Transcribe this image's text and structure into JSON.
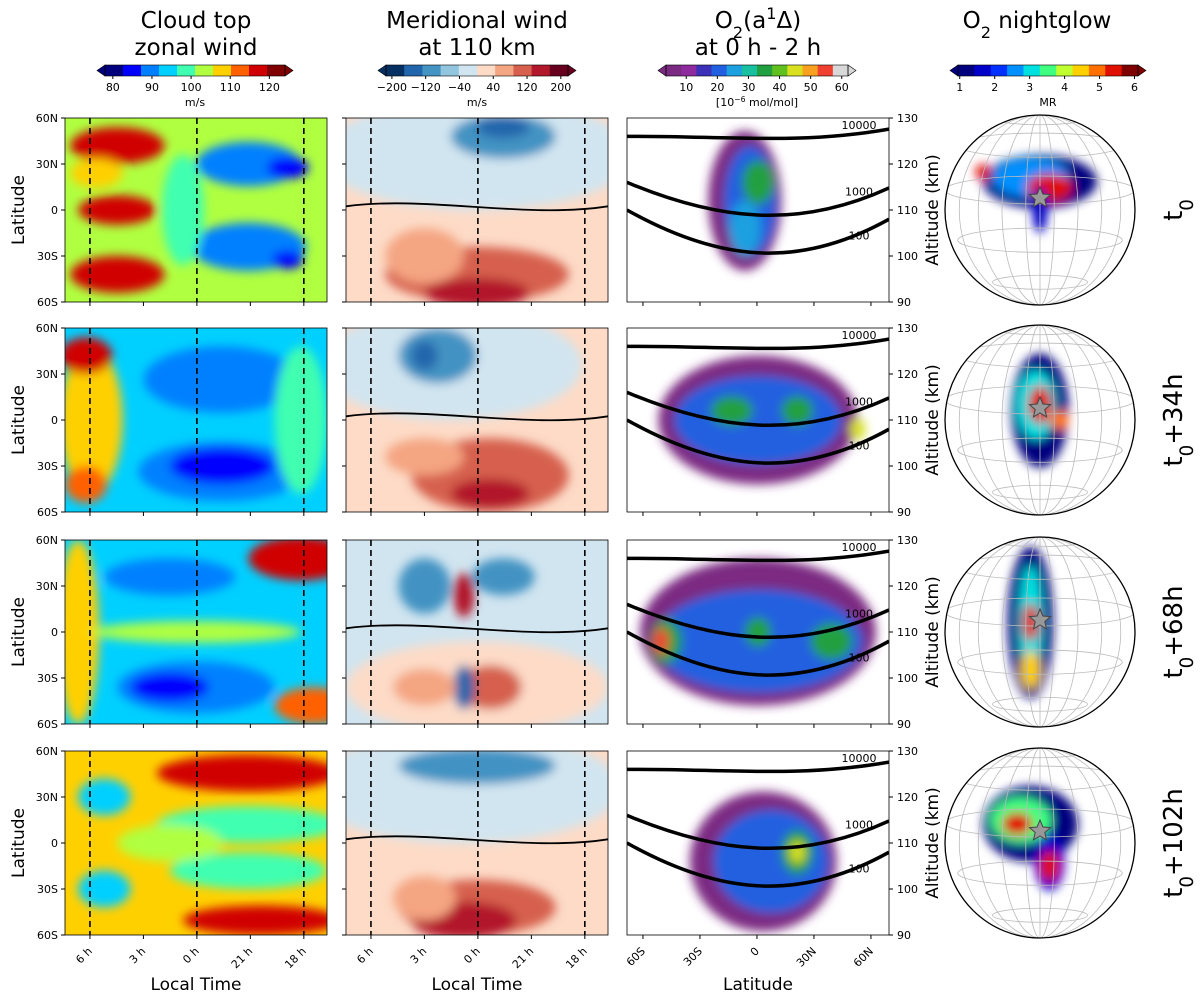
{
  "columns": [
    {
      "title": [
        [
          {
            "t": "Cloud top"
          }
        ],
        [
          {
            "t": "zonal wind"
          }
        ]
      ],
      "colorbar": {
        "lim": [
          78,
          124
        ],
        "ticks": [
          80,
          90,
          100,
          110,
          120
        ],
        "unit": [
          {
            "t": "m/s"
          }
        ],
        "colors": [
          "#00007f",
          "#0000ff",
          "#0080ff",
          "#00d0ff",
          "#40ffb0",
          "#b0ff40",
          "#ffd000",
          "#ff6000",
          "#d00000",
          "#7f0000"
        ]
      }
    },
    {
      "title": [
        [
          {
            "t": "Meridional wind"
          }
        ],
        [
          {
            "t": "at 110 km"
          }
        ]
      ],
      "colorbar": {
        "lim": [
          -214,
          217
        ],
        "ticks": [
          {
            "value": -200,
            "label": "−200"
          },
          {
            "value": -120,
            "label": "−120"
          },
          {
            "value": -40,
            "label": "−40"
          },
          40,
          120,
          200
        ],
        "unit": [
          {
            "t": "m/s"
          }
        ],
        "colors": [
          "#053061",
          "#2166ac",
          "#4393c3",
          "#92c5de",
          "#d1e5f0",
          "#fddbc7",
          "#f4a582",
          "#d6604d",
          "#b2182b",
          "#67001f"
        ]
      }
    },
    {
      "title": [
        [
          {
            "t": "O"
          },
          {
            "t": "2",
            "s": "sub"
          },
          {
            "t": "(a"
          },
          {
            "t": "1",
            "s": "sup"
          },
          {
            "t": "Δ)"
          }
        ],
        [
          {
            "t": "at 0 h - 2 h"
          }
        ]
      ],
      "colorbar": {
        "lim": [
          3.5,
          62
        ],
        "ticks": [
          10,
          20,
          30,
          40,
          50,
          60
        ],
        "unit": [
          {
            "t": "[10"
          },
          {
            "t": "−6",
            "s": "sup"
          },
          {
            "t": " mol/mol]"
          }
        ],
        "colors": [
          "#7b2a82",
          "#8e2a9e",
          "#3b30b8",
          "#2060e0",
          "#1ca0e0",
          "#18c0a0",
          "#20a040",
          "#60c020",
          "#d8e020",
          "#f8a020",
          "#f04030",
          "#d8d8d8"
        ]
      }
    },
    {
      "title": [
        [
          {
            "t": "O"
          },
          {
            "t": "2",
            "s": "sub"
          },
          {
            "t": " nightglow"
          }
        ]
      ],
      "colorbar": {
        "lim": [
          0.95,
          6.1
        ],
        "ticks": [
          1,
          2,
          3,
          4,
          5,
          6
        ],
        "unit": [
          {
            "t": "MR"
          }
        ],
        "colors": [
          "#00007f",
          "#0000c8",
          "#0030ff",
          "#0090ff",
          "#00e0e0",
          "#40ff80",
          "#c0ff30",
          "#ffd000",
          "#ff7000",
          "#e01000",
          "#7f0000"
        ]
      }
    }
  ],
  "rows": [
    {
      "label": [
        {
          "t": "t"
        },
        {
          "t": "0",
          "s": "sub"
        }
      ]
    },
    {
      "label": [
        {
          "t": "t"
        },
        {
          "t": "0",
          "s": "sub"
        },
        {
          "t": "+34h"
        }
      ]
    },
    {
      "label": [
        {
          "t": "t"
        },
        {
          "t": "0",
          "s": "sub"
        },
        {
          "t": "+68h"
        }
      ]
    },
    {
      "label": [
        {
          "t": "t"
        },
        {
          "t": "0",
          "s": "sub"
        },
        {
          "t": "+102h"
        }
      ]
    }
  ],
  "time_axis": {
    "xlabel": "Local Time",
    "ylabel": "Latitude",
    "xlim": [
      7.4,
      -7.3
    ],
    "xticks": [
      {
        "value": 6,
        "label": "6 h"
      },
      {
        "value": 3,
        "label": "3 h"
      },
      {
        "value": 0,
        "label": "0 h"
      },
      {
        "value": -3,
        "label": "21 h"
      },
      {
        "value": -6,
        "label": "18 h"
      }
    ],
    "ylim": [
      -60,
      60
    ],
    "yticks": [
      {
        "value": 60,
        "label": "60N"
      },
      {
        "value": 30,
        "label": "30N"
      },
      0,
      {
        "value": -30,
        "label": "30S"
      },
      {
        "value": -60,
        "label": "60S"
      }
    ]
  },
  "lat_axis": {
    "xlabel": "Latitude",
    "ylabel": "Altitude (km)",
    "xlim": [
      -68.4,
      69.5
    ],
    "xticks": [
      {
        "value": -60,
        "label": "60S"
      },
      {
        "value": -30,
        "label": "30S"
      },
      0,
      {
        "value": 30,
        "label": "30N"
      },
      {
        "value": 60,
        "label": "60N"
      }
    ],
    "ylim": [
      90,
      130
    ],
    "yticks": [
      90,
      100,
      110,
      120,
      130
    ],
    "contour_labels": [
      10000,
      1000,
      100
    ]
  }
}
